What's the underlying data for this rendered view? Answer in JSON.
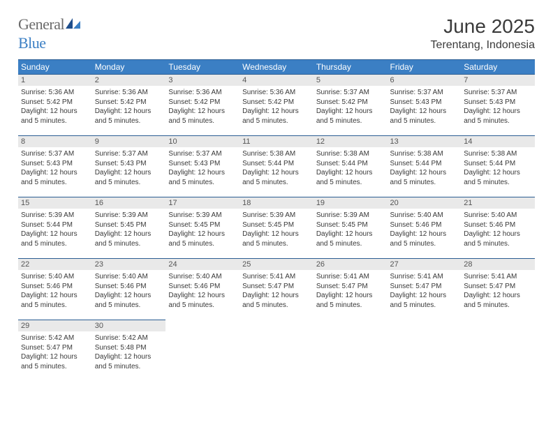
{
  "brand": {
    "general": "General",
    "blue": "Blue"
  },
  "title": "June 2025",
  "location": "Terentang, Indonesia",
  "colors": {
    "header_bg": "#3b7fc4",
    "rule": "#2a5d92",
    "daynum_bg": "#e9e9e9",
    "text": "#333333"
  },
  "weekday_labels": [
    "Sunday",
    "Monday",
    "Tuesday",
    "Wednesday",
    "Thursday",
    "Friday",
    "Saturday"
  ],
  "weeks": [
    [
      {
        "n": "1",
        "sr": "Sunrise: 5:36 AM",
        "ss": "Sunset: 5:42 PM",
        "d1": "Daylight: 12 hours",
        "d2": "and 5 minutes."
      },
      {
        "n": "2",
        "sr": "Sunrise: 5:36 AM",
        "ss": "Sunset: 5:42 PM",
        "d1": "Daylight: 12 hours",
        "d2": "and 5 minutes."
      },
      {
        "n": "3",
        "sr": "Sunrise: 5:36 AM",
        "ss": "Sunset: 5:42 PM",
        "d1": "Daylight: 12 hours",
        "d2": "and 5 minutes."
      },
      {
        "n": "4",
        "sr": "Sunrise: 5:36 AM",
        "ss": "Sunset: 5:42 PM",
        "d1": "Daylight: 12 hours",
        "d2": "and 5 minutes."
      },
      {
        "n": "5",
        "sr": "Sunrise: 5:37 AM",
        "ss": "Sunset: 5:42 PM",
        "d1": "Daylight: 12 hours",
        "d2": "and 5 minutes."
      },
      {
        "n": "6",
        "sr": "Sunrise: 5:37 AM",
        "ss": "Sunset: 5:43 PM",
        "d1": "Daylight: 12 hours",
        "d2": "and 5 minutes."
      },
      {
        "n": "7",
        "sr": "Sunrise: 5:37 AM",
        "ss": "Sunset: 5:43 PM",
        "d1": "Daylight: 12 hours",
        "d2": "and 5 minutes."
      }
    ],
    [
      {
        "n": "8",
        "sr": "Sunrise: 5:37 AM",
        "ss": "Sunset: 5:43 PM",
        "d1": "Daylight: 12 hours",
        "d2": "and 5 minutes."
      },
      {
        "n": "9",
        "sr": "Sunrise: 5:37 AM",
        "ss": "Sunset: 5:43 PM",
        "d1": "Daylight: 12 hours",
        "d2": "and 5 minutes."
      },
      {
        "n": "10",
        "sr": "Sunrise: 5:37 AM",
        "ss": "Sunset: 5:43 PM",
        "d1": "Daylight: 12 hours",
        "d2": "and 5 minutes."
      },
      {
        "n": "11",
        "sr": "Sunrise: 5:38 AM",
        "ss": "Sunset: 5:44 PM",
        "d1": "Daylight: 12 hours",
        "d2": "and 5 minutes."
      },
      {
        "n": "12",
        "sr": "Sunrise: 5:38 AM",
        "ss": "Sunset: 5:44 PM",
        "d1": "Daylight: 12 hours",
        "d2": "and 5 minutes."
      },
      {
        "n": "13",
        "sr": "Sunrise: 5:38 AM",
        "ss": "Sunset: 5:44 PM",
        "d1": "Daylight: 12 hours",
        "d2": "and 5 minutes."
      },
      {
        "n": "14",
        "sr": "Sunrise: 5:38 AM",
        "ss": "Sunset: 5:44 PM",
        "d1": "Daylight: 12 hours",
        "d2": "and 5 minutes."
      }
    ],
    [
      {
        "n": "15",
        "sr": "Sunrise: 5:39 AM",
        "ss": "Sunset: 5:44 PM",
        "d1": "Daylight: 12 hours",
        "d2": "and 5 minutes."
      },
      {
        "n": "16",
        "sr": "Sunrise: 5:39 AM",
        "ss": "Sunset: 5:45 PM",
        "d1": "Daylight: 12 hours",
        "d2": "and 5 minutes."
      },
      {
        "n": "17",
        "sr": "Sunrise: 5:39 AM",
        "ss": "Sunset: 5:45 PM",
        "d1": "Daylight: 12 hours",
        "d2": "and 5 minutes."
      },
      {
        "n": "18",
        "sr": "Sunrise: 5:39 AM",
        "ss": "Sunset: 5:45 PM",
        "d1": "Daylight: 12 hours",
        "d2": "and 5 minutes."
      },
      {
        "n": "19",
        "sr": "Sunrise: 5:39 AM",
        "ss": "Sunset: 5:45 PM",
        "d1": "Daylight: 12 hours",
        "d2": "and 5 minutes."
      },
      {
        "n": "20",
        "sr": "Sunrise: 5:40 AM",
        "ss": "Sunset: 5:46 PM",
        "d1": "Daylight: 12 hours",
        "d2": "and 5 minutes."
      },
      {
        "n": "21",
        "sr": "Sunrise: 5:40 AM",
        "ss": "Sunset: 5:46 PM",
        "d1": "Daylight: 12 hours",
        "d2": "and 5 minutes."
      }
    ],
    [
      {
        "n": "22",
        "sr": "Sunrise: 5:40 AM",
        "ss": "Sunset: 5:46 PM",
        "d1": "Daylight: 12 hours",
        "d2": "and 5 minutes."
      },
      {
        "n": "23",
        "sr": "Sunrise: 5:40 AM",
        "ss": "Sunset: 5:46 PM",
        "d1": "Daylight: 12 hours",
        "d2": "and 5 minutes."
      },
      {
        "n": "24",
        "sr": "Sunrise: 5:40 AM",
        "ss": "Sunset: 5:46 PM",
        "d1": "Daylight: 12 hours",
        "d2": "and 5 minutes."
      },
      {
        "n": "25",
        "sr": "Sunrise: 5:41 AM",
        "ss": "Sunset: 5:47 PM",
        "d1": "Daylight: 12 hours",
        "d2": "and 5 minutes."
      },
      {
        "n": "26",
        "sr": "Sunrise: 5:41 AM",
        "ss": "Sunset: 5:47 PM",
        "d1": "Daylight: 12 hours",
        "d2": "and 5 minutes."
      },
      {
        "n": "27",
        "sr": "Sunrise: 5:41 AM",
        "ss": "Sunset: 5:47 PM",
        "d1": "Daylight: 12 hours",
        "d2": "and 5 minutes."
      },
      {
        "n": "28",
        "sr": "Sunrise: 5:41 AM",
        "ss": "Sunset: 5:47 PM",
        "d1": "Daylight: 12 hours",
        "d2": "and 5 minutes."
      }
    ],
    [
      {
        "n": "29",
        "sr": "Sunrise: 5:42 AM",
        "ss": "Sunset: 5:47 PM",
        "d1": "Daylight: 12 hours",
        "d2": "and 5 minutes."
      },
      {
        "n": "30",
        "sr": "Sunrise: 5:42 AM",
        "ss": "Sunset: 5:48 PM",
        "d1": "Daylight: 12 hours",
        "d2": "and 5 minutes."
      },
      null,
      null,
      null,
      null,
      null
    ]
  ]
}
